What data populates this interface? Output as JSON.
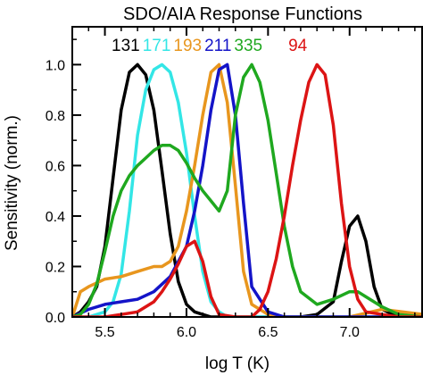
{
  "chart_data": {
    "type": "line",
    "title": "SDO/AIA Response Functions",
    "xlabel": "log T (K)",
    "ylabel": "Sensitivity (norm.)",
    "xlim": [
      5.3,
      7.45
    ],
    "ylim": [
      0.0,
      1.15
    ],
    "xticks": [
      5.5,
      6.0,
      6.5,
      7.0
    ],
    "xtick_labels": [
      "5.5",
      "6.0",
      "6.5",
      "7.0"
    ],
    "yticks": [
      0.0,
      0.2,
      0.4,
      0.6,
      0.8,
      1.0
    ],
    "ytick_labels": [
      "0.0",
      "0.2",
      "0.4",
      "0.6",
      "0.8",
      "1.0"
    ],
    "grid": false,
    "legend": "series names printed in their colors along the top of the plot",
    "series": [
      {
        "name": "131",
        "color": "#000000",
        "x": [
          5.3,
          5.35,
          5.4,
          5.45,
          5.5,
          5.55,
          5.6,
          5.65,
          5.7,
          5.75,
          5.8,
          5.85,
          5.9,
          5.95,
          6.0,
          6.05,
          6.1,
          6.15,
          6.2,
          6.3,
          6.5,
          6.7,
          6.8,
          6.9,
          6.95,
          7.0,
          7.05,
          7.1,
          7.15,
          7.2,
          7.3,
          7.45
        ],
        "y": [
          0.0,
          0.02,
          0.06,
          0.12,
          0.28,
          0.55,
          0.82,
          0.97,
          1.0,
          0.96,
          0.82,
          0.58,
          0.33,
          0.14,
          0.05,
          0.02,
          0.01,
          0.0,
          0.0,
          0.0,
          0.0,
          0.0,
          0.01,
          0.06,
          0.22,
          0.36,
          0.4,
          0.3,
          0.12,
          0.03,
          0.0,
          0.0
        ]
      },
      {
        "name": "171",
        "color": "#33e6e6",
        "x": [
          5.3,
          5.4,
          5.5,
          5.55,
          5.6,
          5.65,
          5.7,
          5.75,
          5.8,
          5.85,
          5.9,
          5.95,
          6.0,
          6.05,
          6.1,
          6.15,
          6.2,
          6.25,
          6.3,
          6.4,
          6.6,
          7.0,
          7.45
        ],
        "y": [
          0.0,
          0.0,
          0.02,
          0.06,
          0.17,
          0.42,
          0.72,
          0.9,
          0.98,
          1.0,
          0.97,
          0.85,
          0.65,
          0.4,
          0.18,
          0.06,
          0.02,
          0.0,
          0.0,
          0.0,
          0.0,
          0.0,
          0.0
        ]
      },
      {
        "name": "193",
        "color": "#e8961e",
        "x": [
          5.3,
          5.35,
          5.4,
          5.5,
          5.6,
          5.7,
          5.8,
          5.85,
          5.9,
          5.95,
          6.0,
          6.05,
          6.1,
          6.15,
          6.2,
          6.25,
          6.3,
          6.35,
          6.4,
          6.5,
          6.6,
          7.0,
          7.2,
          7.45
        ],
        "y": [
          0.0,
          0.1,
          0.12,
          0.15,
          0.16,
          0.18,
          0.2,
          0.2,
          0.22,
          0.28,
          0.42,
          0.6,
          0.8,
          0.97,
          1.0,
          0.85,
          0.52,
          0.18,
          0.05,
          0.01,
          0.0,
          0.0,
          0.03,
          0.01
        ]
      },
      {
        "name": "211",
        "color": "#1414c8",
        "x": [
          5.3,
          5.4,
          5.5,
          5.6,
          5.7,
          5.8,
          5.9,
          6.0,
          6.05,
          6.1,
          6.15,
          6.2,
          6.25,
          6.3,
          6.35,
          6.4,
          6.5,
          6.6,
          7.0,
          7.45
        ],
        "y": [
          0.0,
          0.03,
          0.05,
          0.06,
          0.07,
          0.1,
          0.16,
          0.28,
          0.42,
          0.6,
          0.82,
          0.98,
          1.0,
          0.8,
          0.45,
          0.12,
          0.02,
          0.0,
          0.0,
          0.0
        ]
      },
      {
        "name": "335",
        "color": "#1fa81f",
        "x": [
          5.3,
          5.35,
          5.4,
          5.45,
          5.5,
          5.55,
          5.6,
          5.65,
          5.7,
          5.75,
          5.8,
          5.85,
          5.9,
          5.95,
          6.0,
          6.05,
          6.1,
          6.15,
          6.2,
          6.25,
          6.3,
          6.35,
          6.4,
          6.45,
          6.5,
          6.55,
          6.6,
          6.65,
          6.7,
          6.8,
          6.9,
          7.0,
          7.05,
          7.1,
          7.2,
          7.3,
          7.45
        ],
        "y": [
          0.0,
          0.01,
          0.05,
          0.13,
          0.26,
          0.4,
          0.5,
          0.56,
          0.6,
          0.63,
          0.66,
          0.68,
          0.68,
          0.66,
          0.61,
          0.55,
          0.5,
          0.46,
          0.42,
          0.5,
          0.8,
          0.95,
          1.0,
          0.93,
          0.78,
          0.57,
          0.36,
          0.2,
          0.1,
          0.05,
          0.07,
          0.1,
          0.1,
          0.08,
          0.04,
          0.01,
          0.0
        ]
      },
      {
        "name": "94",
        "color": "#dc1414",
        "x": [
          5.3,
          5.4,
          5.5,
          5.6,
          5.7,
          5.8,
          5.85,
          5.9,
          5.95,
          6.0,
          6.05,
          6.1,
          6.15,
          6.2,
          6.3,
          6.4,
          6.45,
          6.5,
          6.55,
          6.6,
          6.65,
          6.7,
          6.75,
          6.8,
          6.85,
          6.9,
          6.95,
          7.0,
          7.05,
          7.1,
          7.2,
          7.3,
          7.45
        ],
        "y": [
          0.0,
          0.0,
          0.0,
          0.01,
          0.02,
          0.06,
          0.1,
          0.15,
          0.21,
          0.28,
          0.3,
          0.22,
          0.08,
          0.01,
          0.0,
          0.0,
          0.03,
          0.1,
          0.23,
          0.4,
          0.6,
          0.78,
          0.93,
          1.0,
          0.96,
          0.76,
          0.45,
          0.2,
          0.07,
          0.02,
          0.01,
          0.0,
          0.0
        ]
      }
    ]
  }
}
